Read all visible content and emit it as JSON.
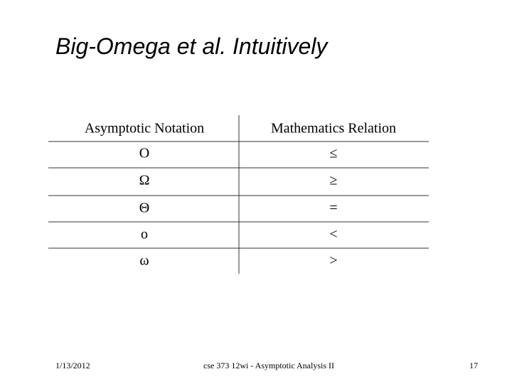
{
  "title": "Big-Omega et al. Intuitively",
  "table": {
    "header": [
      "Asymptotic Notation",
      "Mathematics Relation"
    ],
    "rows": [
      [
        "Ο",
        "≤"
      ],
      [
        "Ω",
        "≥"
      ],
      [
        "Θ",
        "="
      ],
      [
        "ο",
        "<"
      ],
      [
        "ω",
        ">"
      ]
    ]
  },
  "footer": {
    "date": "1/13/2012",
    "course": "cse 373 12wi - Asymptotic Analysis II",
    "page": "17"
  }
}
